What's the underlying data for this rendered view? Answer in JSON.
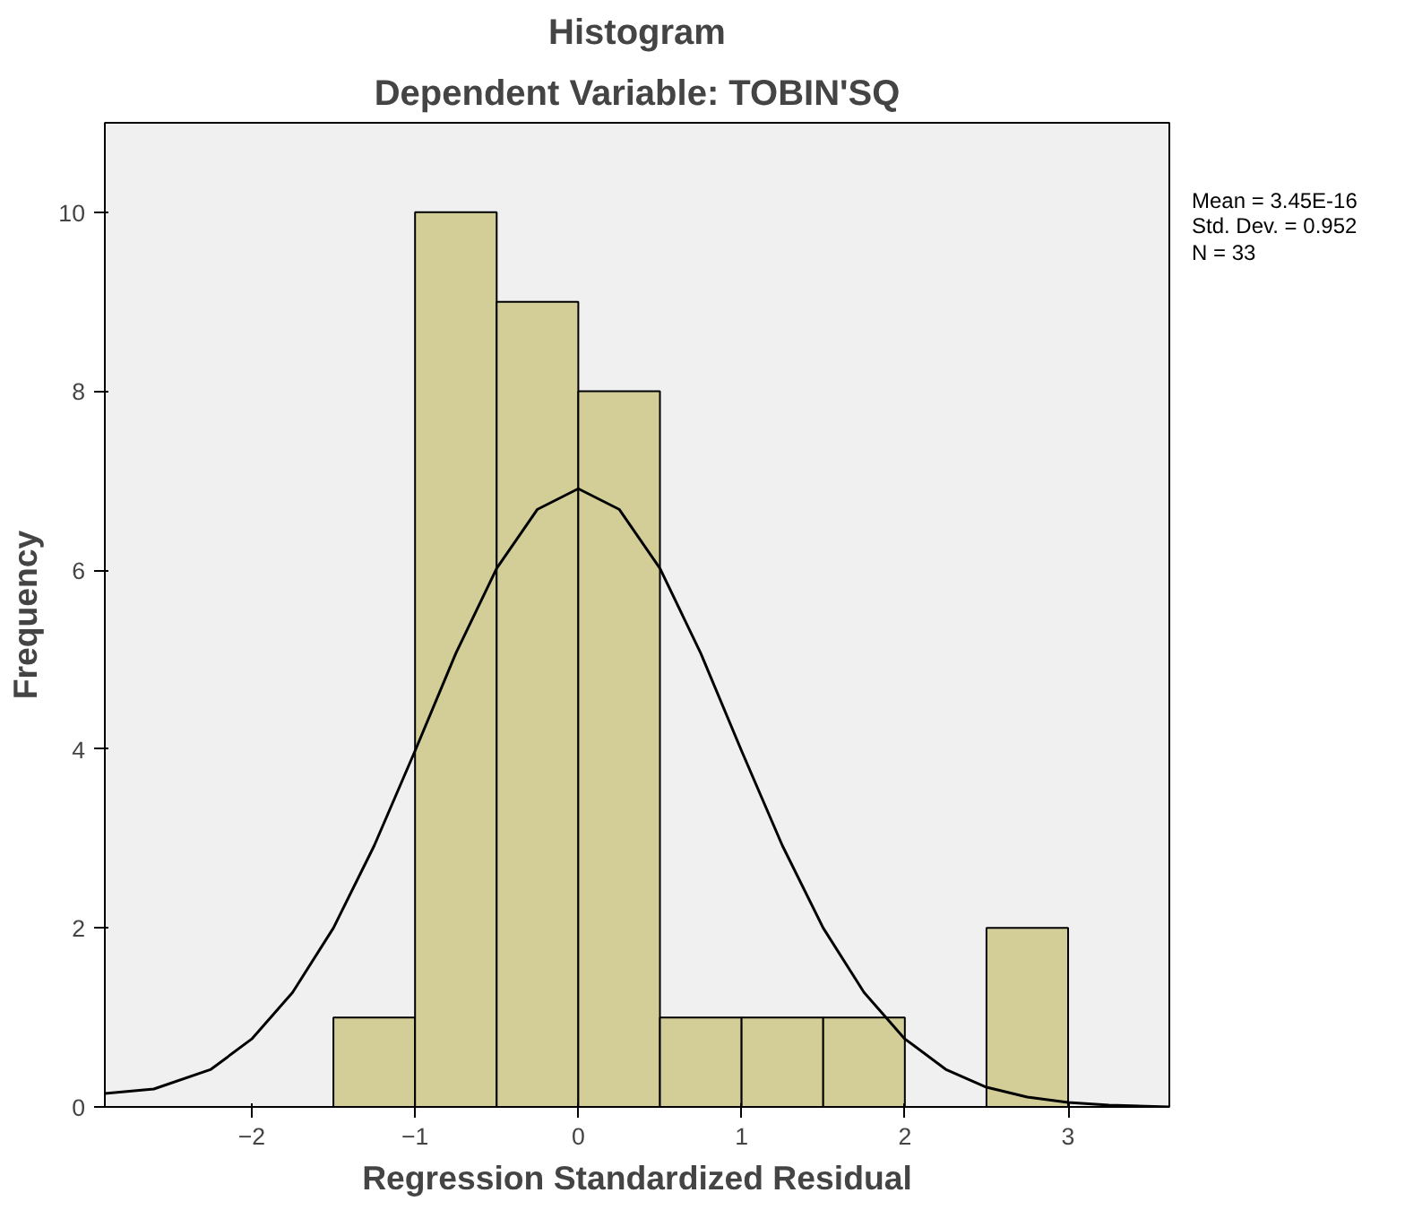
{
  "chart_data": {
    "type": "histogram",
    "title": "Histogram",
    "subtitle": "Dependent Variable: TOBIN'SQ",
    "xlabel": "Regression Standardized Residual",
    "ylabel": "Frequency",
    "bins": [
      -1.5,
      -1.0,
      -0.5,
      0,
      0.5,
      1.0,
      1.5,
      2.0,
      2.5,
      3.0
    ],
    "values": [
      1,
      10,
      9,
      8,
      1,
      1,
      1,
      0,
      2
    ],
    "color": "#d3ce97",
    "series": [
      {
        "type": "line",
        "color": "#000000",
        "x": [
          -2.9,
          -2.6,
          -2.25,
          -2,
          -1.75,
          -1.5,
          -1.25,
          -1,
          -0.75,
          -0.5,
          -0.25,
          0,
          0.25,
          0.5,
          0.75,
          1,
          1.25,
          1.5,
          1.75,
          2,
          2.25,
          2.5,
          2.75,
          3,
          3.25,
          3.62
        ],
        "values": [
          0.15,
          0.2,
          0.42,
          0.76,
          1.28,
          2.0,
          2.92,
          3.98,
          5.07,
          6.02,
          6.68,
          6.91,
          6.68,
          6.02,
          5.07,
          3.98,
          2.92,
          2.0,
          1.28,
          0.76,
          0.42,
          0.22,
          0.11,
          0.05,
          0.02,
          0
        ]
      }
    ],
    "xlim": [
      -2.9,
      3.62
    ],
    "ylim": [
      0,
      11
    ],
    "xticks": [
      -2,
      -1,
      0,
      1,
      2,
      3
    ],
    "yticks": [
      0,
      2,
      4,
      6,
      8,
      10
    ],
    "grid": false,
    "annotations": [
      "Mean = 3.45E-16",
      "Std. Dev. = 0.952",
      "N = 33"
    ]
  }
}
